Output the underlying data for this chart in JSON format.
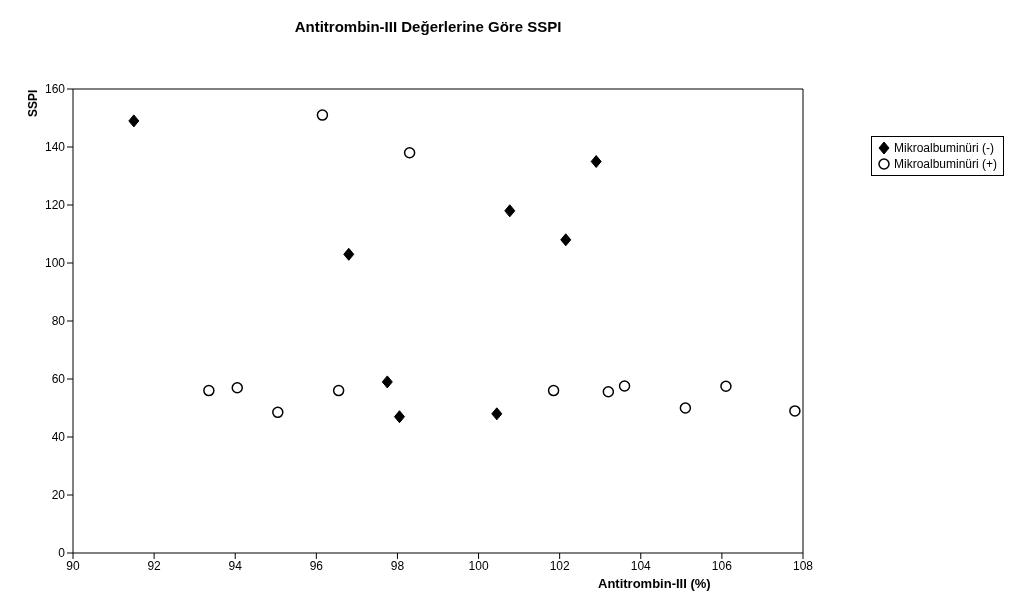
{
  "chart_data": {
    "type": "scatter",
    "title": "Antitrombin-III Değerlerine Göre SSPI",
    "xlabel": "Antitrombin-III (%)",
    "ylabel": "SSPI",
    "series": [
      {
        "name": "Mikroalbuminüri (-)",
        "color": "#000000",
        "marker": "diamond",
        "x": [
          91.5,
          96.8,
          97.75,
          98.05,
          100.45,
          100.77,
          102.15,
          102.9
        ],
        "values": [
          149,
          103,
          59,
          47,
          48,
          118,
          108,
          135
        ]
      },
      {
        "name": "Mikroalbuminüri (+)",
        "color": "#000000",
        "marker": "circle",
        "x": [
          96.15,
          98.3,
          93.35,
          94.05,
          95.05,
          96.55,
          101.85,
          103.2,
          103.6,
          105.1,
          106.1,
          107.8
        ],
        "values": [
          151,
          138,
          56,
          57,
          48.5,
          56,
          56,
          55.6,
          57.6,
          50,
          57.5,
          49
        ]
      }
    ],
    "xlim": [
      90,
      108
    ],
    "xticks": [
      90,
      92,
      94,
      96,
      98,
      100,
      102,
      104,
      106,
      108
    ],
    "ylim": [
      0,
      160
    ],
    "yticks": [
      0,
      20,
      40,
      60,
      80,
      100,
      120,
      140,
      160
    ],
    "legend": "top right"
  }
}
